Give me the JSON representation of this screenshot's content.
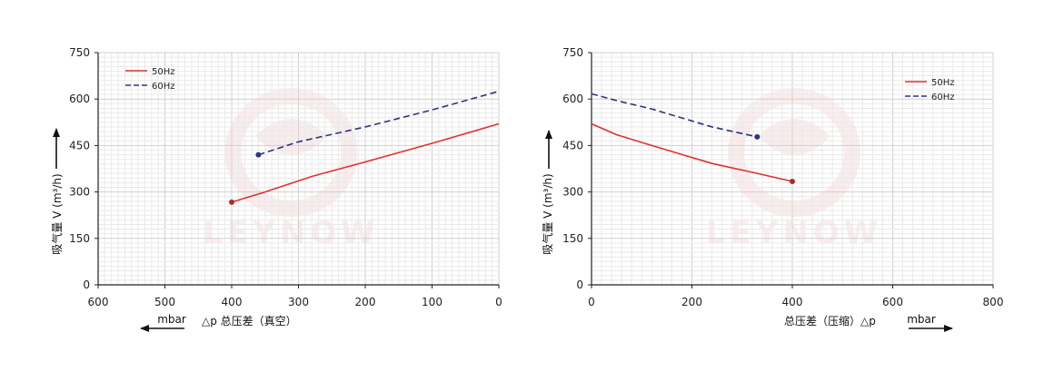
{
  "chart_data": [
    {
      "type": "line",
      "xlabel_main": "△p  总压差（真空）",
      "unit_label": "mbar",
      "ylabel": "吸气量 V (m³/h)",
      "xlim": [
        600,
        0
      ],
      "ylim": [
        0,
        750
      ],
      "xticks": [
        600,
        500,
        400,
        300,
        200,
        100,
        0
      ],
      "yticks": [
        0,
        150,
        300,
        450,
        600,
        750
      ],
      "grid": true,
      "legend_position": "top-left",
      "watermark": "LEYNOW",
      "series": [
        {
          "name": "50Hz",
          "color": "#e03030",
          "dash": false,
          "x": [
            400,
            350,
            280,
            200,
            100,
            0
          ],
          "y": [
            267,
            300,
            350,
            397,
            457,
            520
          ]
        },
        {
          "name": "60Hz",
          "color": "#2b3580",
          "dash": true,
          "x": [
            360,
            300,
            200,
            100,
            0
          ],
          "y": [
            420,
            462,
            510,
            565,
            625
          ]
        }
      ]
    },
    {
      "type": "line",
      "xlabel_main": "总压差（压缩）△p",
      "unit_label": "mbar",
      "ylabel": "吸气量 V (m³/h)",
      "xlim": [
        0,
        800
      ],
      "ylim": [
        0,
        750
      ],
      "xticks": [
        0,
        200,
        400,
        600,
        800
      ],
      "yticks": [
        0,
        150,
        300,
        450,
        600,
        750
      ],
      "grid": true,
      "legend_position": "top-right",
      "watermark": "LEYNOW",
      "series": [
        {
          "name": "50Hz",
          "color": "#e03030",
          "dash": false,
          "x": [
            0,
            50,
            120,
            240,
            330,
            400
          ],
          "y": [
            520,
            485,
            450,
            392,
            360,
            334
          ]
        },
        {
          "name": "60Hz",
          "color": "#2b3580",
          "dash": true,
          "x": [
            0,
            50,
            120,
            240,
            330
          ],
          "y": [
            617,
            595,
            568,
            510,
            478
          ]
        }
      ]
    }
  ]
}
